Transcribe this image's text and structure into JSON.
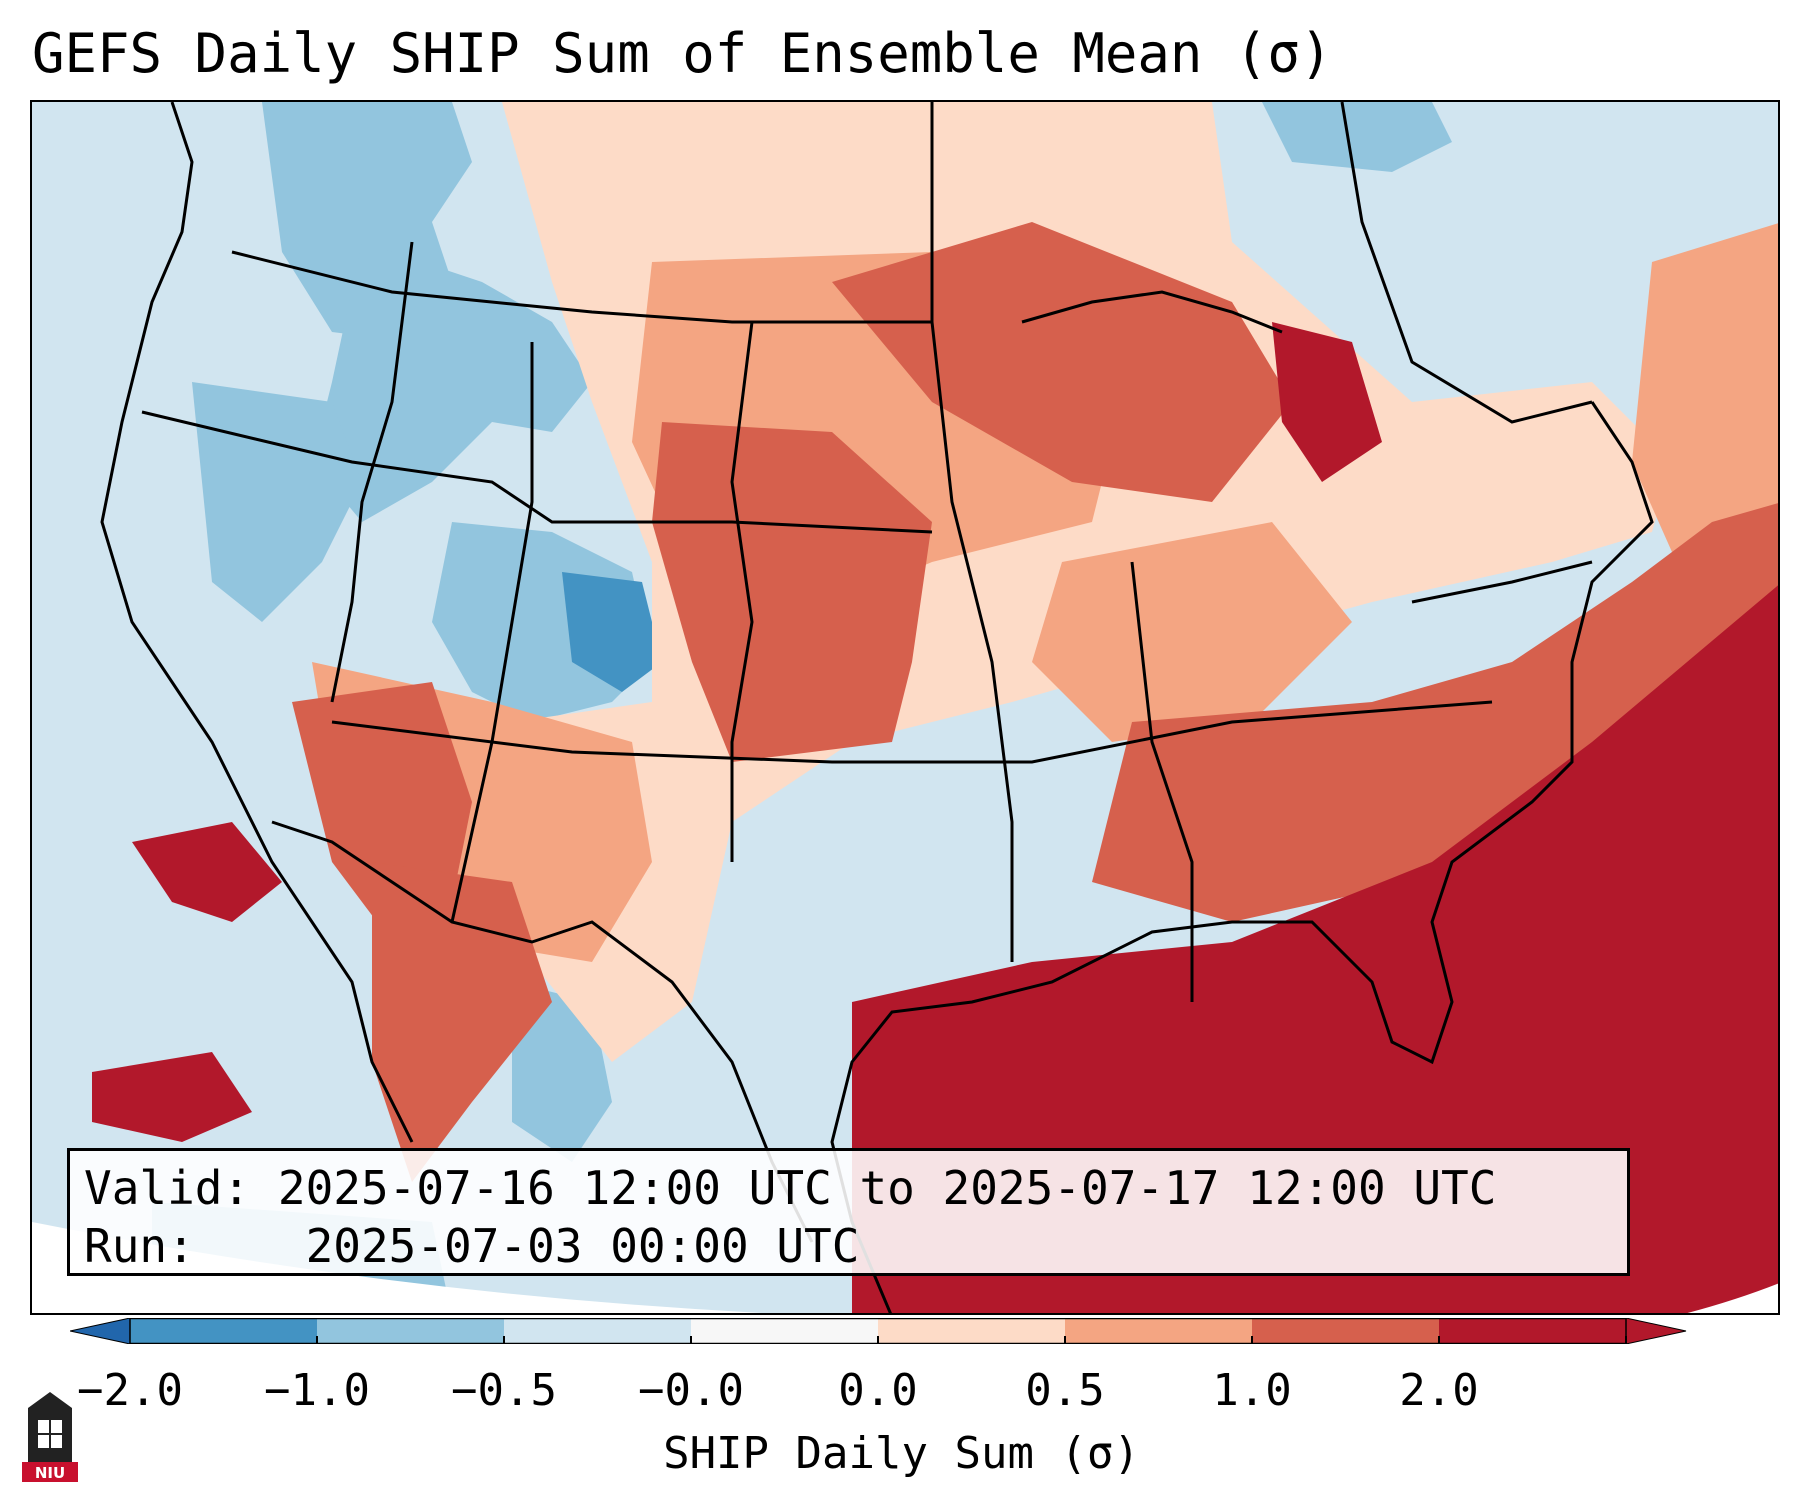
{
  "title": "GEFS Daily SHIP Sum of Ensemble Mean (σ)",
  "info": {
    "valid_label": "Valid:",
    "valid_value": "2025-07-16 12:00 UTC to 2025-07-17 12:00 UTC",
    "run_label": "Run:",
    "run_value": "2025-07-03 00:00 UTC"
  },
  "colorbar": {
    "label": "SHIP Daily Sum (σ)",
    "ticks": [
      "−2.0",
      "−1.0",
      "−0.5",
      "−0.0",
      "0.0",
      "0.5",
      "1.0",
      "2.0"
    ],
    "colors": [
      "#4393c3",
      "#92c5de",
      "#d1e5f0",
      "#f7f7f7",
      "#fddbc7",
      "#f4a582",
      "#d6604d",
      "#b2182b"
    ],
    "extend_low_color": "#2166ac",
    "extend_high_color": "#b2182b"
  },
  "logo": {
    "text": "NIU",
    "icon": "university-tower-icon",
    "color": "#c8102e"
  }
}
